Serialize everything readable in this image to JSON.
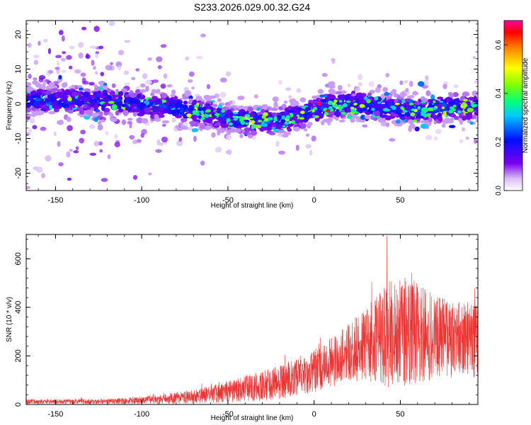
{
  "title": "S233.2026.029.00.32.G24",
  "chart_data": [
    {
      "type": "heatmap",
      "xlabel": "Height of straight line (km)",
      "ylabel": "Frequency (Hz)",
      "xlim": [
        -167,
        95
      ],
      "ylim": [
        -25,
        24
      ],
      "xticks": [
        -150,
        -100,
        -50,
        0,
        50
      ],
      "xtick_labels": [
        "-150",
        "-100",
        "-50",
        "0",
        "50"
      ],
      "yticks": [
        -20,
        -10,
        0,
        10,
        20
      ],
      "ytick_labels": [
        "-20",
        "-10",
        "0",
        "10",
        "20"
      ],
      "ridge_center_hz": [
        {
          "x": -160,
          "y": 1
        },
        {
          "x": -130,
          "y": 1
        },
        {
          "x": -100,
          "y": 0
        },
        {
          "x": -80,
          "y": -1.5
        },
        {
          "x": -60,
          "y": -3
        },
        {
          "x": -40,
          "y": -5
        },
        {
          "x": -20,
          "y": -5
        },
        {
          "x": -5,
          "y": -3
        },
        {
          "x": 5,
          "y": -1
        },
        {
          "x": 20,
          "y": 0
        },
        {
          "x": 40,
          "y": -1
        },
        {
          "x": 60,
          "y": -2
        },
        {
          "x": 80,
          "y": -1
        },
        {
          "x": 92,
          "y": -1
        }
      ],
      "peak_amplitude": 0.68,
      "colorbar": {
        "label": "Normalized spectral amplitude",
        "range": [
          0,
          0.7
        ],
        "ticks": [
          0,
          0.2,
          0.4,
          0.6
        ],
        "tick_labels": [
          "0.0",
          "0.2",
          "0.4",
          "0.6"
        ]
      }
    },
    {
      "type": "line",
      "xlabel": "Height of straight line (km)",
      "ylabel": "SNR (10 * v/v)",
      "xlim": [
        -167,
        95
      ],
      "ylim": [
        0,
        700
      ],
      "xticks": [
        -150,
        -100,
        -50,
        0,
        50
      ],
      "xtick_labels": [
        "-150",
        "-100",
        "-50",
        "0",
        "50"
      ],
      "yticks": [
        0,
        200,
        400,
        600
      ],
      "ytick_labels": [
        "0",
        "200",
        "400",
        "600"
      ],
      "color": "#ee3333",
      "envelope": [
        {
          "x": -167,
          "mean": 12,
          "spread": 10
        },
        {
          "x": -120,
          "mean": 12,
          "spread": 10
        },
        {
          "x": -90,
          "mean": 20,
          "spread": 18
        },
        {
          "x": -60,
          "mean": 40,
          "spread": 35
        },
        {
          "x": -40,
          "mean": 65,
          "spread": 55
        },
        {
          "x": -20,
          "mean": 90,
          "spread": 70
        },
        {
          "x": 0,
          "mean": 140,
          "spread": 90
        },
        {
          "x": 15,
          "mean": 190,
          "spread": 110
        },
        {
          "x": 30,
          "mean": 250,
          "spread": 150
        },
        {
          "x": 45,
          "mean": 290,
          "spread": 230
        },
        {
          "x": 55,
          "mean": 300,
          "spread": 240
        },
        {
          "x": 70,
          "mean": 280,
          "spread": 170
        },
        {
          "x": 95,
          "mean": 270,
          "spread": 160
        }
      ],
      "max_value": 700
    }
  ]
}
